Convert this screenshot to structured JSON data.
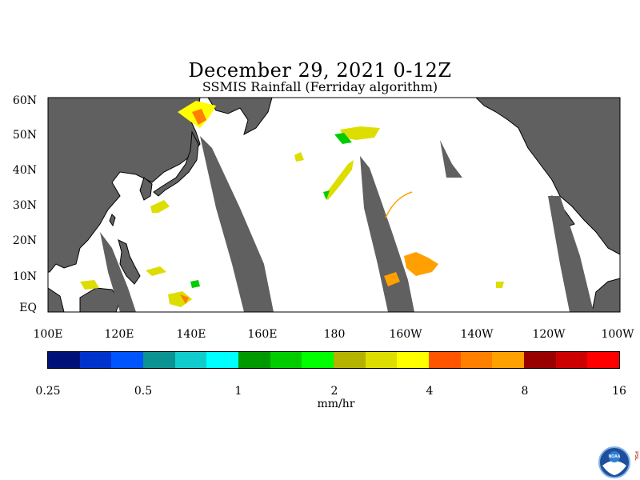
{
  "title": "December 29, 2021 0-12Z",
  "subtitle": "SSMIS Rainfall (Ferriday algorithm)",
  "lat_labels": [
    "60N",
    "50N",
    "40N",
    "30N",
    "20N",
    "10N",
    "EQ"
  ],
  "lon_labels": [
    "100E",
    "120E",
    "140E",
    "160E",
    "180",
    "160W",
    "140W",
    "120W",
    "100W"
  ],
  "colorbar": {
    "colors": [
      "#00127a",
      "#0033cc",
      "#0055ff",
      "#0b9393",
      "#11cccc",
      "#00ffff",
      "#009900",
      "#00cc00",
      "#00ff00",
      "#b3b300",
      "#dddd00",
      "#ffff00",
      "#ff5500",
      "#ff7f00",
      "#ffa000",
      "#990000",
      "#cc0000",
      "#ff0000"
    ],
    "tick_labels": [
      "0.25",
      "0.5",
      "1",
      "2",
      "4",
      "8",
      "16"
    ],
    "units": "mm/hr"
  },
  "logo": {
    "name": "NOAA",
    "side_text": "PSL"
  },
  "colors": {
    "land": "#606060",
    "ocean": "#ffffff",
    "no_data": "#606060"
  }
}
